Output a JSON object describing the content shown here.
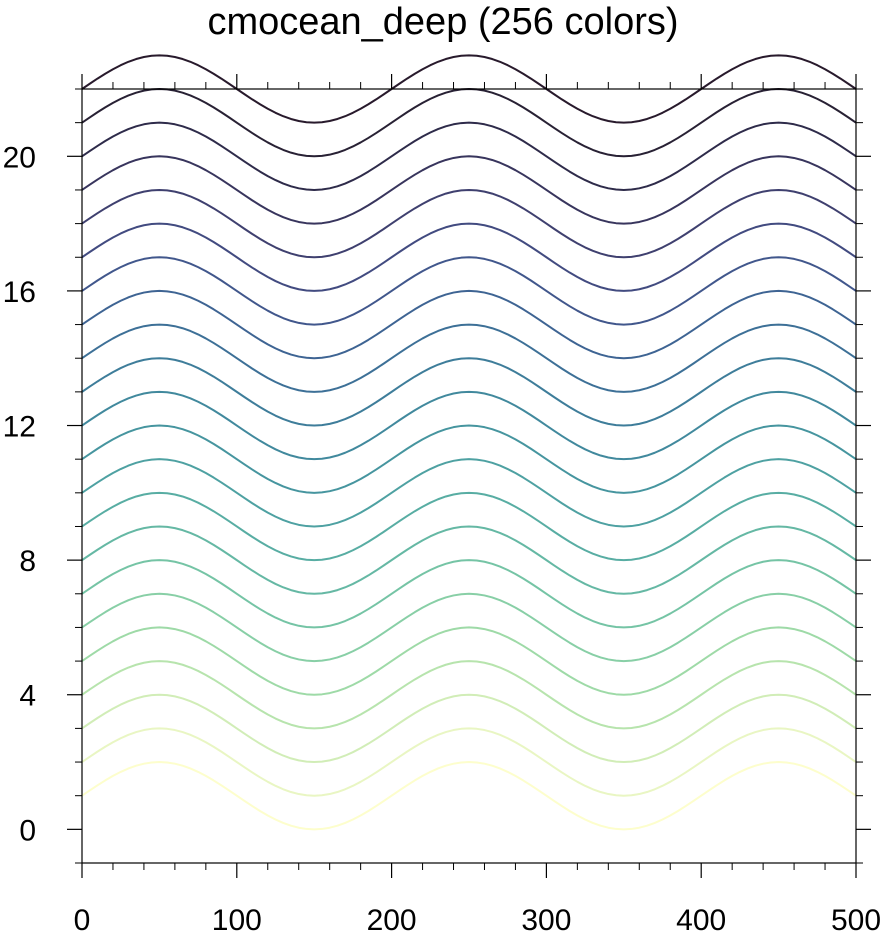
{
  "chart_data": {
    "type": "line",
    "title": "cmocean_deep (256 colors)",
    "xlabel": "",
    "ylabel": "",
    "xlim": [
      0,
      500
    ],
    "ylim": [
      -1,
      22
    ],
    "x_ticks": [
      0,
      100,
      200,
      300,
      400,
      500
    ],
    "x_tick_labels": [
      "0",
      "100",
      "200",
      "300",
      "400",
      "500"
    ],
    "x_minor_step": 20,
    "y_ticks": [
      0,
      4,
      8,
      12,
      16,
      20
    ],
    "y_tick_labels": [
      "0",
      "4",
      "8",
      "12",
      "16",
      "20"
    ],
    "y_minor_step": 1,
    "grid": false,
    "legend": "none",
    "curve": {
      "formula": "offset + sin(2*pi*x/200)",
      "x_start": 0,
      "x_end": 500,
      "x_step": 5,
      "amplitude": 1,
      "period": 200
    },
    "series": [
      {
        "offset": 1,
        "color": "#fdfecc"
      },
      {
        "offset": 2,
        "color": "#e9f6c3"
      },
      {
        "offset": 3,
        "color": "#d1edb7"
      },
      {
        "offset": 4,
        "color": "#b7e4ad"
      },
      {
        "offset": 5,
        "color": "#9edaa7"
      },
      {
        "offset": 6,
        "color": "#88cfa6"
      },
      {
        "offset": 7,
        "color": "#75c4a5"
      },
      {
        "offset": 8,
        "color": "#65b8a4"
      },
      {
        "offset": 9,
        "color": "#58ada3"
      },
      {
        "offset": 10,
        "color": "#4ea1a2"
      },
      {
        "offset": 11,
        "color": "#46959f"
      },
      {
        "offset": 12,
        "color": "#41899d"
      },
      {
        "offset": 13,
        "color": "#3e7d9a"
      },
      {
        "offset": 14,
        "color": "#3d7097"
      },
      {
        "offset": 15,
        "color": "#3e6493"
      },
      {
        "offset": 16,
        "color": "#41578c"
      },
      {
        "offset": 17,
        "color": "#424b80"
      },
      {
        "offset": 18,
        "color": "#3f406f"
      },
      {
        "offset": 19,
        "color": "#38355d"
      },
      {
        "offset": 20,
        "color": "#2e2b4a"
      },
      {
        "offset": 21,
        "color": "#282134"
      },
      {
        "offset": 22,
        "color": "#281a2c"
      }
    ]
  }
}
